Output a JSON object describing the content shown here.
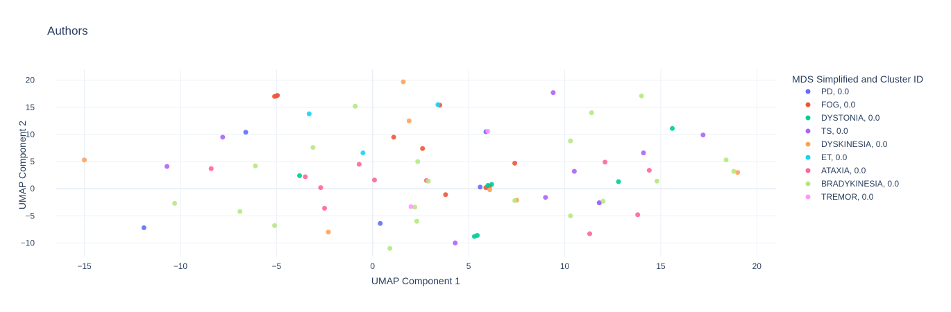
{
  "chart_data": {
    "type": "scatter",
    "title": "Authors",
    "xlabel": "UMAP Component 1",
    "ylabel": "UMAP Component 2",
    "xlim": [
      -16.5,
      21
    ],
    "ylim": [
      -12.5,
      22
    ],
    "xticks": [
      -15,
      -10,
      -5,
      0,
      5,
      10,
      15,
      20
    ],
    "yticks": [
      -10,
      -5,
      0,
      5,
      10,
      15,
      20
    ],
    "xtick_labels": [
      "−15",
      "−10",
      "−5",
      "0",
      "5",
      "10",
      "15",
      "20"
    ],
    "ytick_labels": [
      "−10",
      "−5",
      "0",
      "5",
      "10",
      "15",
      "20"
    ],
    "grid": true,
    "legend": {
      "title": "MDS Simplified and Cluster ID",
      "position": "right"
    },
    "series": [
      {
        "name": "PD, 0.0",
        "color": "#636efa",
        "points": [
          [
            -11.9,
            -7.2
          ],
          [
            -6.6,
            10.4
          ],
          [
            0.4,
            -6.4
          ],
          [
            5.6,
            0.3
          ],
          [
            5.9,
            10.5
          ],
          [
            11.8,
            -2.6
          ]
        ]
      },
      {
        "name": "FOG, 0.0",
        "color": "#ef553b",
        "points": [
          [
            -5.1,
            17.0
          ],
          [
            -5.0,
            17.1
          ],
          [
            -4.95,
            17.2
          ],
          [
            1.1,
            9.5
          ],
          [
            2.6,
            7.4
          ],
          [
            3.5,
            15.4
          ],
          [
            3.8,
            -1.1
          ],
          [
            6.1,
            0.5
          ],
          [
            7.4,
            4.7
          ],
          [
            5.9,
            0.2
          ]
        ]
      },
      {
        "name": "DYSTONIA, 0.0",
        "color": "#00cc96",
        "points": [
          [
            -3.8,
            2.4
          ],
          [
            5.3,
            -8.8
          ],
          [
            5.45,
            -8.6
          ],
          [
            6.0,
            0.6
          ],
          [
            6.2,
            0.8
          ],
          [
            12.8,
            1.3
          ],
          [
            15.6,
            11.1
          ]
        ]
      },
      {
        "name": "TS, 0.0",
        "color": "#ab63fa",
        "points": [
          [
            -10.7,
            4.1
          ],
          [
            -7.8,
            9.5
          ],
          [
            4.3,
            -10.0
          ],
          [
            9.0,
            -1.6
          ],
          [
            9.4,
            17.7
          ],
          [
            10.5,
            3.2
          ],
          [
            11.8,
            -2.6
          ],
          [
            14.1,
            6.6
          ],
          [
            17.2,
            9.9
          ]
        ]
      },
      {
        "name": "DYSKINESIA, 0.0",
        "color": "#ffa15a",
        "points": [
          [
            -15.0,
            5.3
          ],
          [
            -2.3,
            -8.0
          ],
          [
            1.6,
            19.7
          ],
          [
            1.9,
            12.5
          ],
          [
            6.1,
            -0.2
          ],
          [
            7.5,
            -2.1
          ],
          [
            19.0,
            3.0
          ]
        ]
      },
      {
        "name": "ET, 0.0",
        "color": "#19d3f3",
        "points": [
          [
            -3.3,
            13.8
          ],
          [
            -0.5,
            6.6
          ],
          [
            3.4,
            15.5
          ]
        ]
      },
      {
        "name": "ATAXIA, 0.0",
        "color": "#ff6692",
        "points": [
          [
            -8.4,
            3.7
          ],
          [
            -3.5,
            2.2
          ],
          [
            -2.7,
            0.2
          ],
          [
            -2.5,
            -3.6
          ],
          [
            -0.7,
            4.5
          ],
          [
            0.1,
            1.6
          ],
          [
            2.8,
            1.5
          ],
          [
            11.3,
            -8.3
          ],
          [
            12.1,
            4.9
          ],
          [
            13.8,
            -4.8
          ],
          [
            14.4,
            3.4
          ]
        ]
      },
      {
        "name": "BRADYKINESIA, 0.0",
        "color": "#b6e880",
        "points": [
          [
            -10.3,
            -2.7
          ],
          [
            -6.9,
            -4.2
          ],
          [
            -6.1,
            4.2
          ],
          [
            -5.1,
            -6.8
          ],
          [
            -3.1,
            7.6
          ],
          [
            -0.9,
            15.2
          ],
          [
            0.9,
            -11.0
          ],
          [
            2.2,
            -3.4
          ],
          [
            2.3,
            -6.0
          ],
          [
            2.35,
            5.0
          ],
          [
            2.9,
            1.4
          ],
          [
            7.4,
            -2.2
          ],
          [
            10.3,
            8.8
          ],
          [
            10.3,
            -5.0
          ],
          [
            11.4,
            14.0
          ],
          [
            12.0,
            -2.3
          ],
          [
            14.0,
            17.1
          ],
          [
            14.8,
            1.4
          ],
          [
            18.4,
            5.3
          ],
          [
            18.8,
            3.2
          ]
        ]
      },
      {
        "name": "TREMOR, 0.0",
        "color": "#ff97ff",
        "points": [
          [
            2.0,
            -3.3
          ],
          [
            6.0,
            10.6
          ]
        ]
      }
    ]
  }
}
